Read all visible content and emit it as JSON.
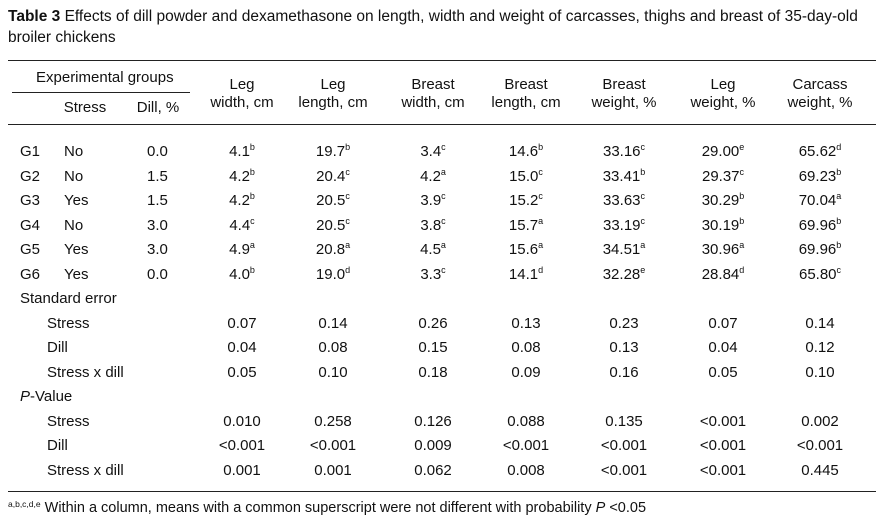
{
  "caption": {
    "label": "Table 3",
    "text": " Effects of dill powder and dexamethasone on length, width and weight of carcasses, thighs and breast of 35-day-old broiler chickens"
  },
  "header": {
    "group_title": "Experimental groups",
    "stress": "Stress",
    "dill": "Dill, %",
    "columns": [
      [
        "Leg",
        "width, cm"
      ],
      [
        "Leg",
        "length, cm"
      ],
      [
        "Breast",
        "width, cm"
      ],
      [
        "Breast",
        "length, cm"
      ],
      [
        "Breast",
        "weight, %"
      ],
      [
        "Leg",
        "weight, %"
      ],
      [
        "Carcass",
        "weight, %"
      ]
    ]
  },
  "rows": [
    {
      "group": "G1",
      "stress": "No",
      "dill": "0.0",
      "cells": [
        [
          "4.1",
          "b"
        ],
        [
          "19.7",
          "b"
        ],
        [
          "3.4",
          "c"
        ],
        [
          "14.6",
          "b"
        ],
        [
          "33.16",
          "c"
        ],
        [
          "29.00",
          "e"
        ],
        [
          "65.62",
          "d"
        ]
      ]
    },
    {
      "group": "G2",
      "stress": "No",
      "dill": "1.5",
      "cells": [
        [
          "4.2",
          "b"
        ],
        [
          "20.4",
          "c"
        ],
        [
          "4.2",
          "a"
        ],
        [
          "15.0",
          "c"
        ],
        [
          "33.41",
          "b"
        ],
        [
          "29.37",
          "c"
        ],
        [
          "69.23",
          "b"
        ]
      ]
    },
    {
      "group": "G3",
      "stress": "Yes",
      "dill": "1.5",
      "cells": [
        [
          "4.2",
          "b"
        ],
        [
          "20.5",
          "c"
        ],
        [
          "3.9",
          "c"
        ],
        [
          "15.2",
          "c"
        ],
        [
          "33.63",
          "c"
        ],
        [
          "30.29",
          "b"
        ],
        [
          "70.04",
          "a"
        ]
      ]
    },
    {
      "group": "G4",
      "stress": "No",
      "dill": "3.0",
      "cells": [
        [
          "4.4",
          "c"
        ],
        [
          "20.5",
          "c"
        ],
        [
          "3.8",
          "c"
        ],
        [
          "15.7",
          "a"
        ],
        [
          "33.19",
          "c"
        ],
        [
          "30.19",
          "b"
        ],
        [
          "69.96",
          "b"
        ]
      ]
    },
    {
      "group": "G5",
      "stress": "Yes",
      "dill": "3.0",
      "cells": [
        [
          "4.9",
          "a"
        ],
        [
          "20.8",
          "a"
        ],
        [
          "4.5",
          "a"
        ],
        [
          "15.6",
          "a"
        ],
        [
          "34.51",
          "a"
        ],
        [
          "30.96",
          "a"
        ],
        [
          "69.96",
          "b"
        ]
      ]
    },
    {
      "group": "G6",
      "stress": "Yes",
      "dill": "0.0",
      "cells": [
        [
          "4.0",
          "b"
        ],
        [
          "19.0",
          "d"
        ],
        [
          "3.3",
          "c"
        ],
        [
          "14.1",
          "d"
        ],
        [
          "32.28",
          "e"
        ],
        [
          "28.84",
          "d"
        ],
        [
          "65.80",
          "c"
        ]
      ]
    }
  ],
  "sections": [
    {
      "title": "Standard error",
      "title_prefix": "",
      "rows": [
        {
          "label": "Stress",
          "values": [
            "0.07",
            "0.14",
            "0.26",
            "0.13",
            "0.23",
            "0.07",
            "0.14"
          ]
        },
        {
          "label": "Dill",
          "values": [
            "0.04",
            "0.08",
            "0.15",
            "0.08",
            "0.13",
            "0.04",
            "0.12"
          ]
        },
        {
          "label": "Stress x dill",
          "values": [
            "0.05",
            "0.10",
            "0.18",
            "0.09",
            "0.16",
            "0.05",
            "0.10"
          ]
        }
      ]
    },
    {
      "title": "-Value",
      "title_prefix": "P",
      "rows": [
        {
          "label": "Stress",
          "values": [
            "0.010",
            "0.258",
            "0.126",
            "0.088",
            "0.135",
            "<0.001",
            "0.002"
          ]
        },
        {
          "label": "Dill",
          "values": [
            "<0.001",
            "<0.001",
            "0.009",
            "<0.001",
            "<0.001",
            "<0.001",
            "<0.001"
          ]
        },
        {
          "label": "Stress x dill",
          "values": [
            "0.001",
            "0.001",
            "0.062",
            "0.008",
            "<0.001",
            "<0.001",
            "0.445"
          ]
        }
      ]
    }
  ],
  "footnote": {
    "superscripts": "a,b,c,d,e",
    "text": " Within a column, means with a common superscript were not different with probability ",
    "p": "P",
    "tail": " <0.05"
  }
}
